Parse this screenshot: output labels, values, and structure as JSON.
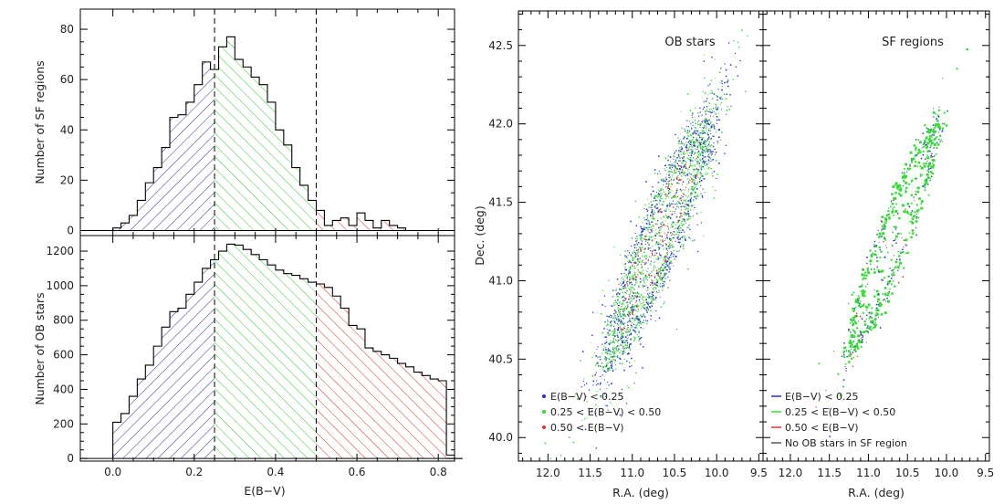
{
  "chart_data": [
    {
      "id": "hist_sf",
      "type": "bar",
      "subtype": "step-histogram",
      "ylabel": "Number of SF regions",
      "xlabel": "",
      "xlim": [
        -0.08,
        0.84
      ],
      "ylim": [
        -2,
        88
      ],
      "xticks": [
        0.0,
        0.2,
        0.4,
        0.6,
        0.8
      ],
      "yticks": [
        0,
        20,
        40,
        60,
        80
      ],
      "bin_width": 0.02,
      "bin_start": 0.0,
      "values": [
        1,
        3,
        6,
        12,
        19,
        25,
        33,
        45,
        46,
        51,
        58,
        67,
        64,
        73,
        77,
        68,
        65,
        61,
        58,
        51,
        40,
        34,
        25,
        18,
        12,
        8,
        2,
        4,
        5,
        2,
        7,
        4,
        1,
        4,
        2,
        1,
        0
      ],
      "dividers": [
        0.25,
        0.5
      ],
      "region_colors": [
        "#2c2c8c",
        "#2ccc2c",
        "#cc3333"
      ]
    },
    {
      "id": "hist_ob",
      "type": "bar",
      "subtype": "step-histogram",
      "ylabel": "Number of OB stars",
      "xlabel": "E(B−V)",
      "xlim": [
        -0.08,
        0.84
      ],
      "ylim": [
        -15,
        1290
      ],
      "xticks": [
        0.0,
        0.2,
        0.4,
        0.6,
        0.8
      ],
      "xtick_labels": [
        "0.0",
        "0.2",
        "0.4",
        "0.6",
        "0.8"
      ],
      "yticks": [
        0,
        200,
        400,
        600,
        800,
        1000,
        1200
      ],
      "bin_width": 0.02,
      "bin_start": 0.0,
      "values": [
        210,
        260,
        360,
        460,
        540,
        650,
        760,
        850,
        870,
        950,
        1020,
        1100,
        1150,
        1200,
        1240,
        1235,
        1210,
        1180,
        1150,
        1120,
        1090,
        1070,
        1060,
        1040,
        1020,
        1010,
        990,
        940,
        870,
        770,
        750,
        640,
        620,
        600,
        580,
        550,
        530,
        500,
        480,
        460,
        450,
        20,
        0
      ],
      "dividers": [
        0.25,
        0.5
      ],
      "region_colors": [
        "#2c2c8c",
        "#2ccc2c",
        "#cc3333"
      ]
    },
    {
      "id": "map_ob",
      "type": "scatter",
      "title": "OB stars",
      "xlabel": "R.A. (deg)",
      "ylabel": "Dec. (deg)",
      "xlim": [
        12.35,
        9.45
      ],
      "ylim": [
        39.85,
        42.72
      ],
      "xticks": [
        12.0,
        11.5,
        11.0,
        10.5,
        10.0,
        9.5
      ],
      "xtick_labels": [
        "12.0",
        "11.5",
        "11.0",
        "10.5",
        "10.0",
        "9.5"
      ],
      "yticks": [
        40.0,
        40.5,
        41.0,
        41.5,
        42.0,
        42.5
      ],
      "ytick_labels": [
        "40.0",
        "40.5",
        "41.0",
        "41.5",
        "42.0",
        "42.5"
      ],
      "galaxy": {
        "center_ra": 10.68,
        "center_dec": 41.27,
        "semi_major_deg": 1.55,
        "semi_minor_deg": 0.32,
        "position_angle_deg": 38
      },
      "legend": [
        {
          "label": "E(B−V) < 0.25",
          "color": "#2233cc"
        },
        {
          "label": "0.25 < E(B−V) < 0.50",
          "color": "#33dd33"
        },
        {
          "label": "0.50 < E(B−V)",
          "color": "#dd3333"
        }
      ],
      "legend_position": "lower-left"
    },
    {
      "id": "map_sf",
      "type": "scatter",
      "title": "SF regions",
      "xlabel": "R.A. (deg)",
      "xlim": [
        12.35,
        9.45
      ],
      "ylim": [
        39.85,
        42.72
      ],
      "xticks": [
        12.0,
        11.5,
        11.0,
        10.5,
        10.0,
        9.5
      ],
      "xtick_labels": [
        "12.0",
        "11.5",
        "11.0",
        "10.5",
        "10.0",
        "9.5"
      ],
      "yticks": [
        40.0,
        40.5,
        41.0,
        41.5,
        42.0,
        42.5
      ],
      "galaxy": {
        "center_ra": 10.68,
        "center_dec": 41.27,
        "semi_major_deg": 1.45,
        "semi_minor_deg": 0.25,
        "position_angle_deg": 38
      },
      "legend": [
        {
          "label": "E(B−V) < 0.25",
          "color": "#2233cc"
        },
        {
          "label": "0.25 < E(B−V) < 0.50",
          "color": "#33dd33"
        },
        {
          "label": "0.50 < E(B−V)",
          "color": "#dd3333"
        },
        {
          "label": "No OB stars in SF region",
          "color": "#555555"
        }
      ],
      "legend_position": "lower-left"
    }
  ]
}
